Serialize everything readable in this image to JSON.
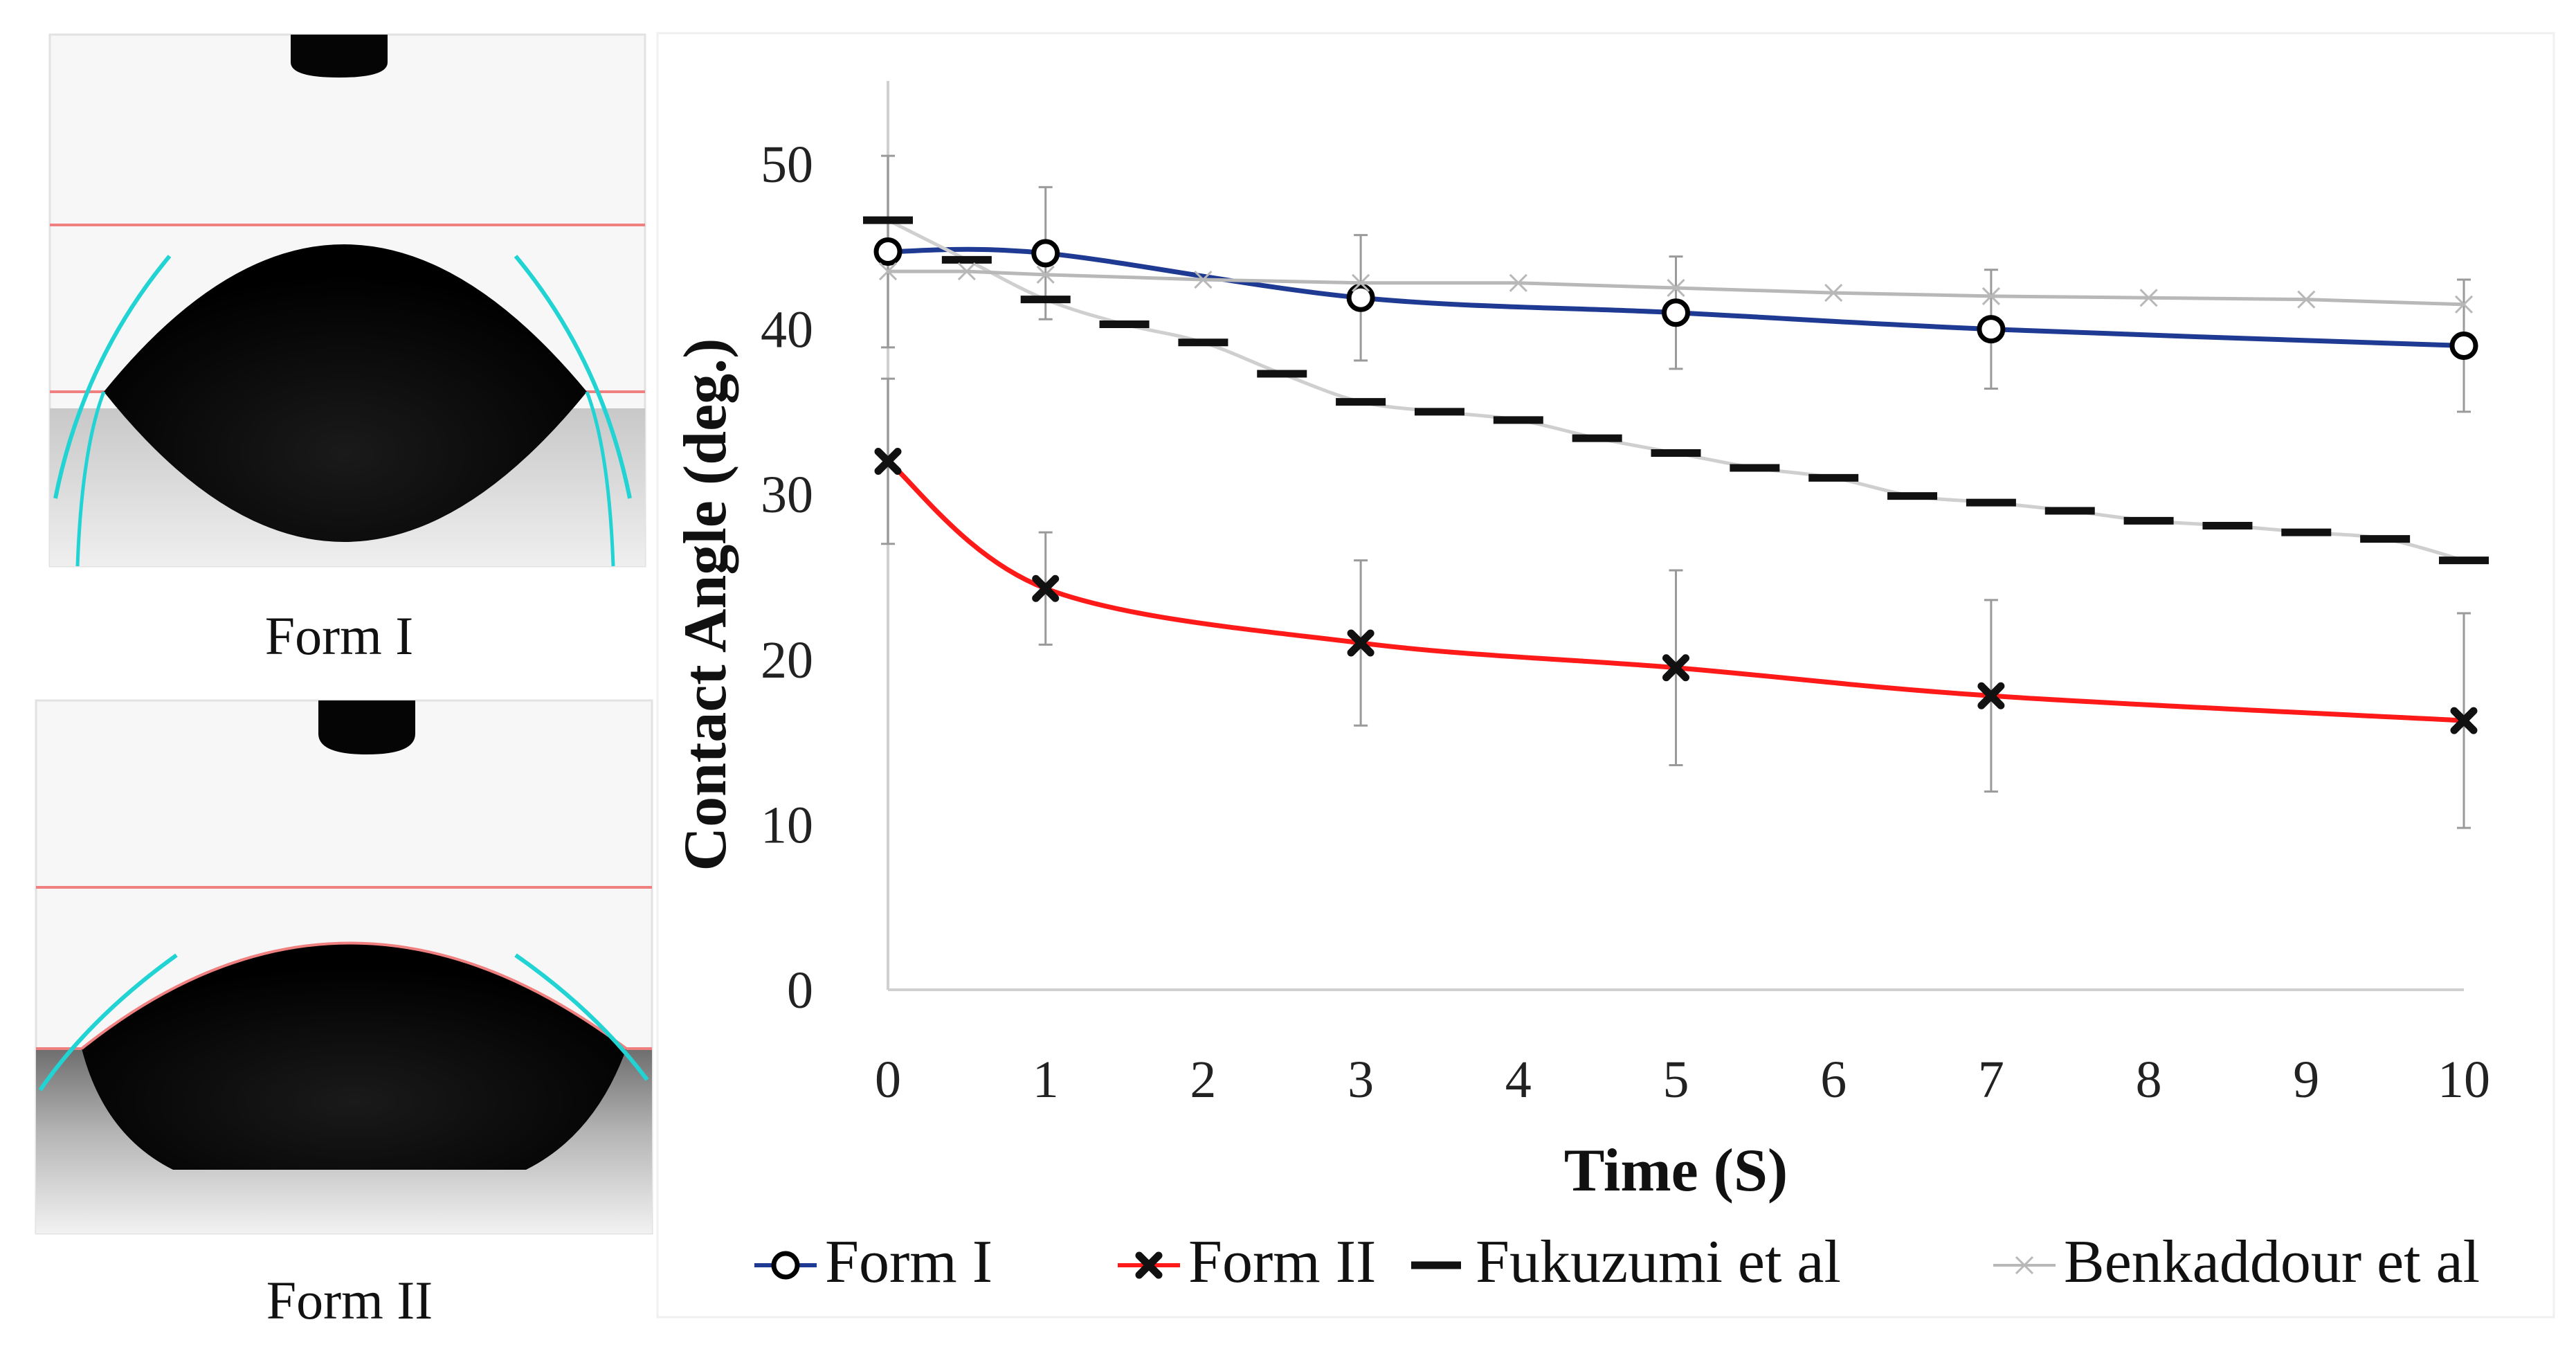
{
  "panels": {
    "photo_top_caption": "Form I",
    "photo_bottom_caption": "Form II"
  },
  "colors": {
    "form1": "#1f3a93",
    "form2": "#ff1a1a",
    "fukuzumi": "#111111",
    "benkaddour": "#b8b8b8",
    "fit_line": "#f08080",
    "tangent": "#22d3d3",
    "axis": "#d0d0d0"
  },
  "chart_data": {
    "type": "line",
    "title": "",
    "xlabel": "Time (S)",
    "ylabel": "Contact Angle (deg.)",
    "xlim": [
      0,
      10
    ],
    "ylim": [
      0,
      50
    ],
    "x_ticks": [
      "0",
      "1",
      "2",
      "3",
      "4",
      "5",
      "6",
      "7",
      "8",
      "9",
      "10"
    ],
    "y_ticks": [
      "0",
      "10",
      "20",
      "30",
      "40",
      "50"
    ],
    "grid": false,
    "legend_position": "bottom",
    "series": [
      {
        "name": "Form I",
        "x": [
          0,
          1,
          3,
          5,
          7,
          10
        ],
        "y": [
          44.7,
          44.6,
          41.9,
          41.0,
          40.0,
          39.0
        ],
        "err": [
          5.8,
          4.0,
          3.8,
          3.4,
          3.6,
          4.0
        ],
        "marker": "circle",
        "line": "smooth"
      },
      {
        "name": "Form II",
        "x": [
          0,
          1,
          3,
          5,
          7,
          10
        ],
        "y": [
          32.0,
          24.3,
          21.0,
          19.5,
          17.8,
          16.3
        ],
        "err": [
          5.0,
          3.4,
          5.0,
          5.9,
          5.8,
          6.5
        ],
        "marker": "x-bold",
        "line": "smooth"
      },
      {
        "name": "Fukuzumi et al",
        "x": [
          0,
          0.5,
          1,
          1.5,
          2,
          2.5,
          3,
          3.5,
          4,
          4.5,
          5,
          5.5,
          6,
          6.5,
          7,
          7.5,
          8,
          8.5,
          9,
          9.5,
          10
        ],
        "y": [
          46.6,
          44.2,
          41.8,
          40.3,
          39.2,
          37.3,
          35.6,
          35.0,
          34.5,
          33.4,
          32.5,
          31.6,
          31.0,
          29.9,
          29.5,
          29.0,
          28.4,
          28.1,
          27.7,
          27.3,
          26.0
        ],
        "marker": "dash",
        "line": "light"
      },
      {
        "name": "Benkaddour et al",
        "x": [
          0,
          0.5,
          1,
          2,
          3,
          4,
          5,
          6,
          7,
          8,
          9,
          10
        ],
        "y": [
          43.5,
          43.5,
          43.3,
          43.0,
          42.8,
          42.8,
          42.5,
          42.2,
          42.0,
          41.9,
          41.8,
          41.5
        ],
        "marker": "x-thin",
        "line": "straight"
      }
    ]
  }
}
